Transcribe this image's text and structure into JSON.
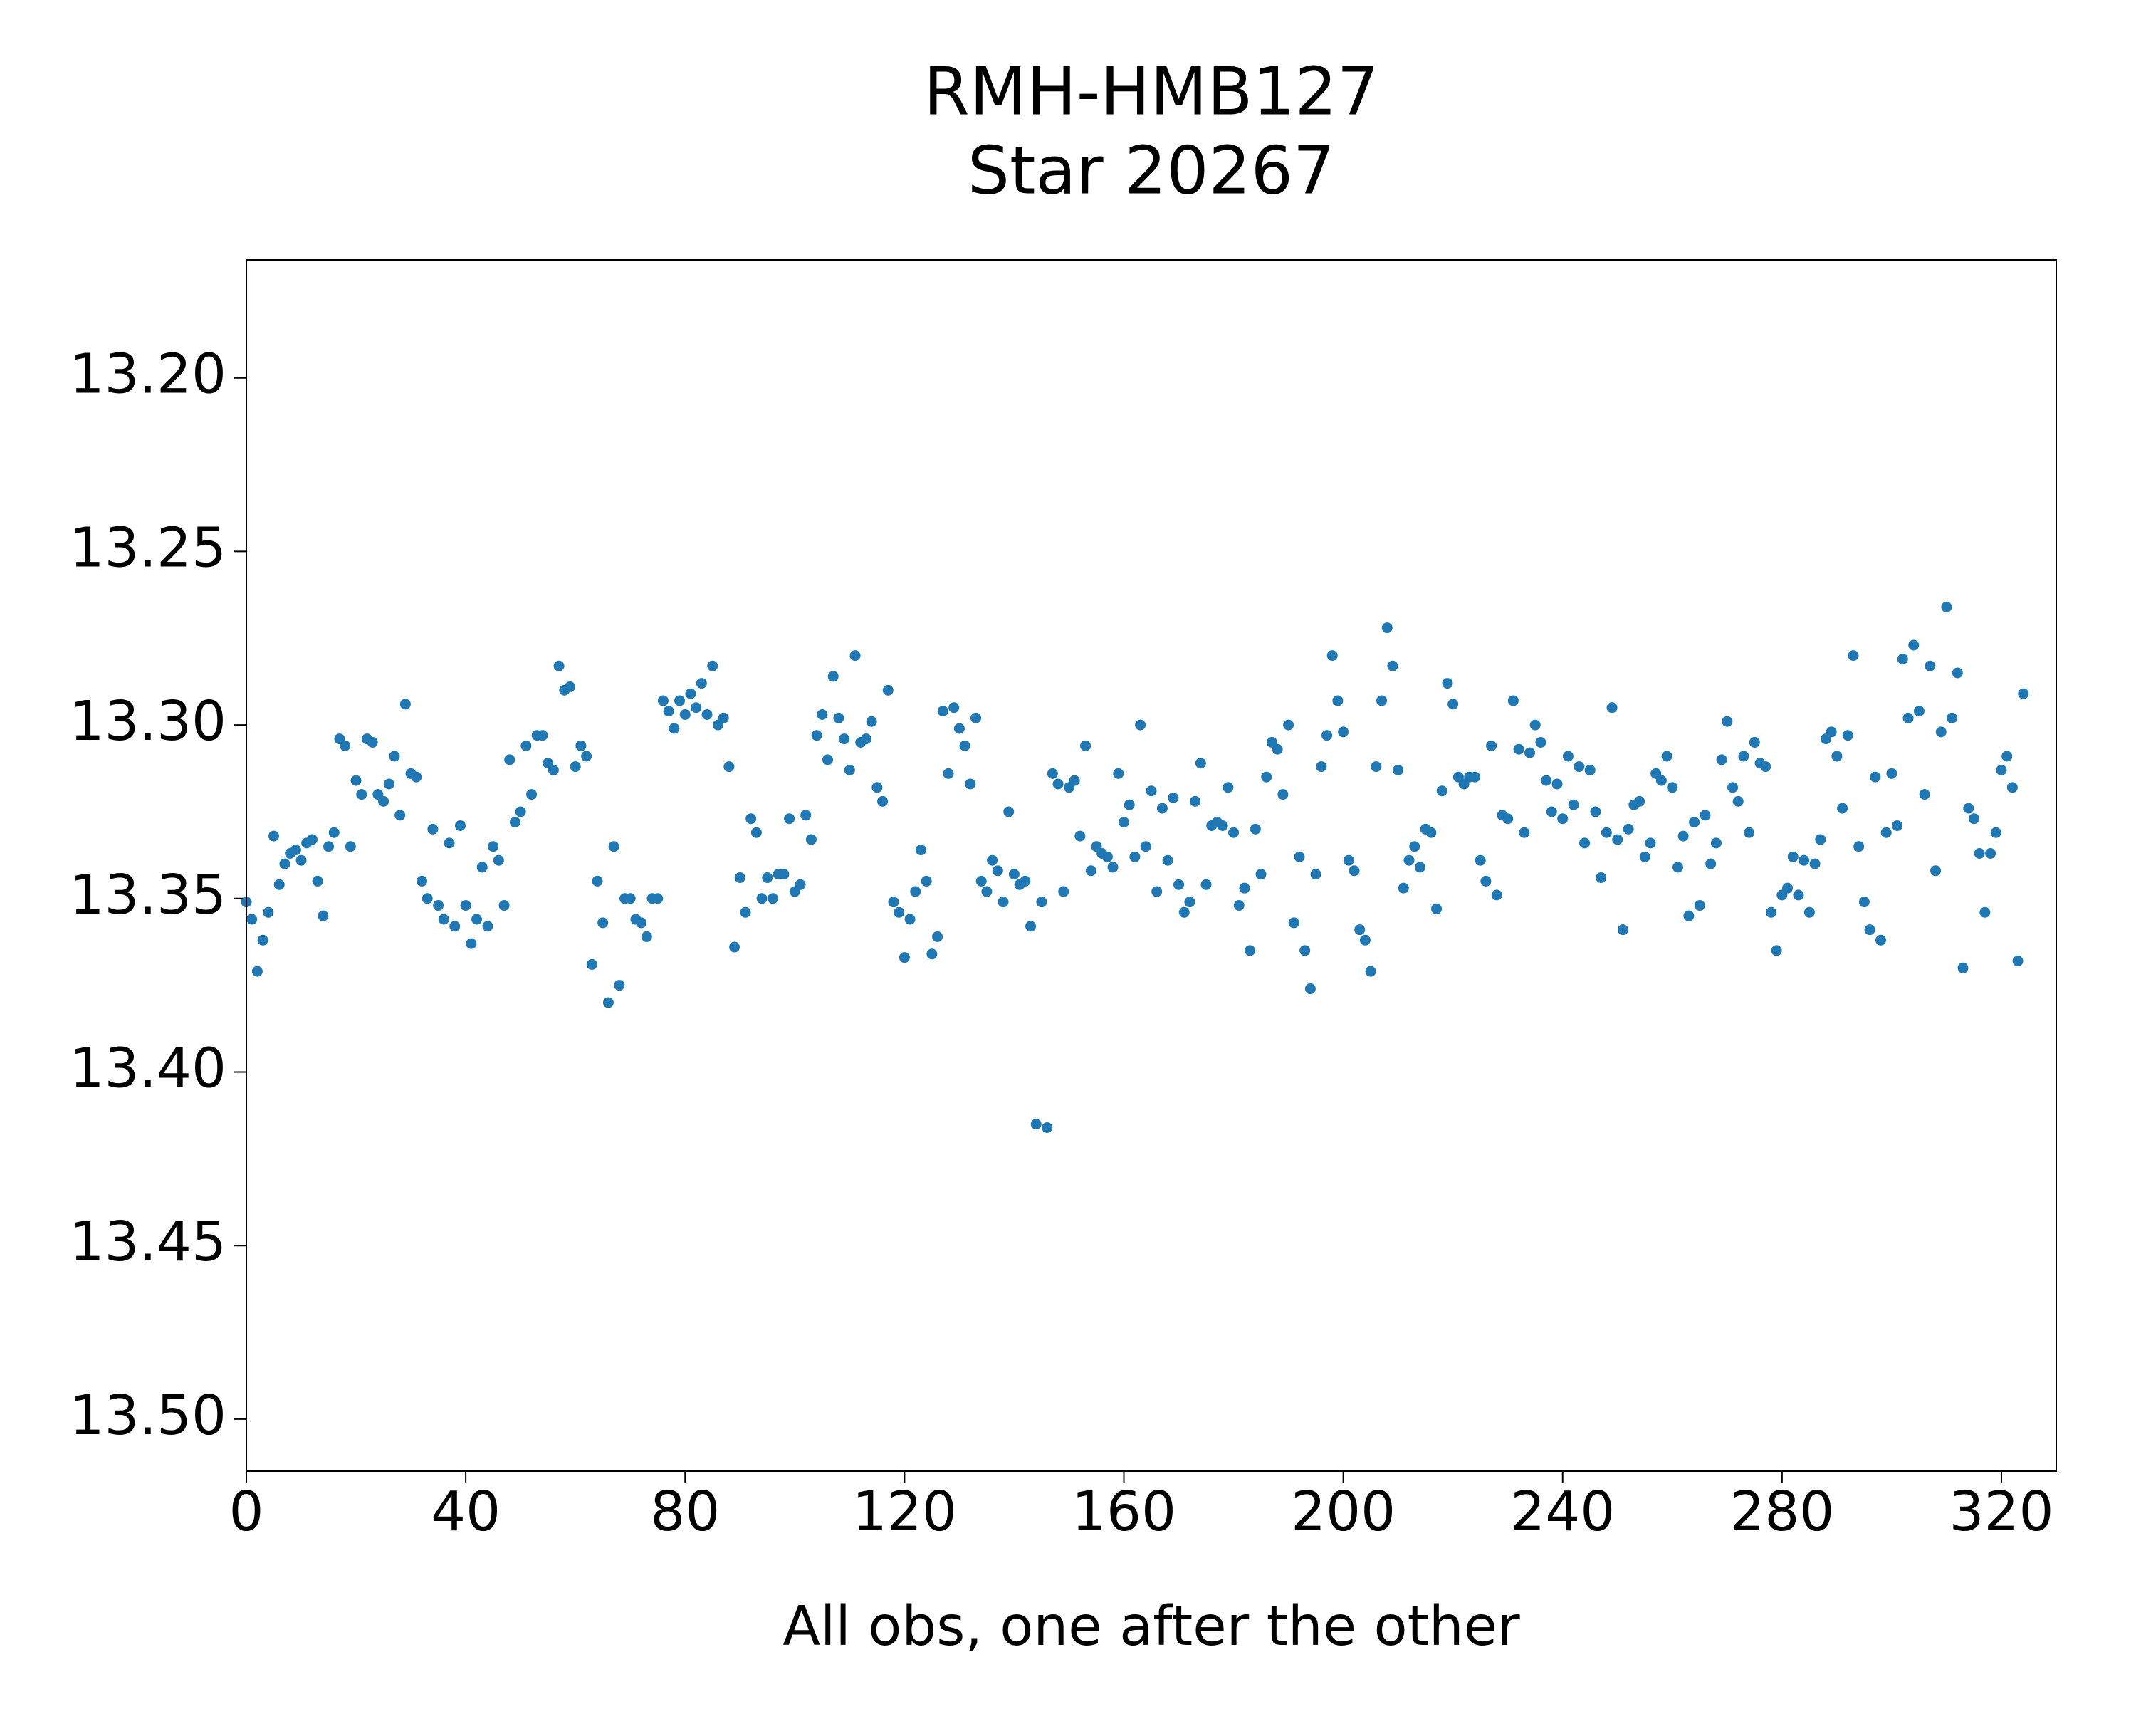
{
  "chart_data": {
    "type": "scatter",
    "title": [
      "RMH-HMB127",
      "Star 20267"
    ],
    "xlabel": "All obs, one after the other",
    "color": "#1f77b4",
    "grid": false,
    "y_inverted": true,
    "xlim": [
      0,
      330
    ],
    "ylim": [
      13.166,
      13.515
    ],
    "xticks": [
      0,
      40,
      80,
      120,
      160,
      200,
      240,
      280,
      320
    ],
    "yticks": [
      {
        "value": 13.2,
        "label": "13.20"
      },
      13.25,
      {
        "value": 13.3,
        "label": "13.30"
      },
      13.35,
      {
        "value": 13.4,
        "label": "13.40"
      },
      13.45,
      {
        "value": 13.5,
        "label": "13.50"
      }
    ],
    "x": [
      0,
      1,
      2,
      3,
      4,
      5,
      6,
      7,
      8,
      9,
      10,
      11,
      12,
      13,
      14,
      15,
      16,
      17,
      18,
      19,
      20,
      21,
      22,
      23,
      24,
      25,
      26,
      27,
      28,
      29,
      30,
      31,
      32,
      33,
      34,
      35,
      36,
      37,
      38,
      39,
      40,
      41,
      42,
      43,
      44,
      45,
      46,
      47,
      48,
      49,
      50,
      51,
      52,
      53,
      54,
      55,
      56,
      57,
      58,
      59,
      60,
      61,
      62,
      63,
      64,
      65,
      66,
      67,
      68,
      69,
      70,
      71,
      72,
      73,
      74,
      75,
      76,
      77,
      78,
      79,
      80,
      81,
      82,
      83,
      84,
      85,
      86,
      87,
      88,
      89,
      90,
      91,
      92,
      93,
      94,
      95,
      96,
      97,
      98,
      99,
      100,
      101,
      102,
      103,
      104,
      105,
      106,
      107,
      108,
      109,
      110,
      111,
      112,
      113,
      114,
      115,
      116,
      117,
      118,
      119,
      120,
      121,
      122,
      123,
      124,
      125,
      126,
      127,
      128,
      129,
      130,
      131,
      132,
      133,
      134,
      135,
      136,
      137,
      138,
      139,
      140,
      141,
      142,
      143,
      144,
      145,
      146,
      147,
      148,
      149,
      150,
      151,
      152,
      153,
      154,
      155,
      156,
      157,
      158,
      159,
      160,
      161,
      162,
      163,
      164,
      165,
      166,
      167,
      168,
      169,
      170,
      171,
      172,
      173,
      174,
      175,
      176,
      177,
      178,
      179,
      180,
      181,
      182,
      183,
      184,
      185,
      186,
      187,
      188,
      189,
      190,
      191,
      192,
      193,
      194,
      195,
      196,
      197,
      198,
      199,
      200,
      201,
      202,
      203,
      204,
      205,
      206,
      207,
      208,
      209,
      210,
      211,
      212,
      213,
      214,
      215,
      216,
      217,
      218,
      219,
      220,
      221,
      222,
      223,
      224,
      225,
      226,
      227,
      228,
      229,
      230,
      231,
      232,
      233,
      234,
      235,
      236,
      237,
      238,
      239,
      240,
      241,
      242,
      243,
      244,
      245,
      246,
      247,
      248,
      249,
      250,
      251,
      252,
      253,
      254,
      255,
      256,
      257,
      258,
      259,
      260,
      261,
      262,
      263,
      264,
      265,
      266,
      267,
      268,
      269,
      270,
      271,
      272,
      273,
      274,
      275,
      276,
      277,
      278,
      279,
      280,
      281,
      282,
      283,
      284,
      285,
      286,
      287,
      288,
      289,
      290,
      291,
      292,
      293,
      294,
      295,
      296,
      297,
      298,
      299,
      300,
      301,
      302,
      303,
      304,
      305,
      306,
      307,
      308,
      309,
      310,
      311,
      312,
      313,
      314,
      315,
      316,
      317,
      318,
      319,
      320,
      321,
      322,
      323,
      324
    ],
    "values": [
      13.351,
      13.356,
      13.371,
      13.362,
      13.354,
      13.332,
      13.346,
      13.34,
      13.337,
      13.336,
      13.339,
      13.334,
      13.333,
      13.345,
      13.355,
      13.335,
      13.331,
      13.304,
      13.306,
      13.335,
      13.316,
      13.32,
      13.304,
      13.305,
      13.32,
      13.322,
      13.317,
      13.309,
      13.326,
      13.294,
      13.314,
      13.315,
      13.345,
      13.35,
      13.33,
      13.352,
      13.356,
      13.334,
      13.358,
      13.329,
      13.352,
      13.363,
      13.356,
      13.341,
      13.358,
      13.335,
      13.339,
      13.352,
      13.31,
      13.328,
      13.325,
      13.306,
      13.32,
      13.303,
      13.303,
      13.311,
      13.313,
      13.283,
      13.29,
      13.289,
      13.312,
      13.306,
      13.309,
      13.369,
      13.345,
      13.357,
      13.38,
      13.335,
      13.375,
      13.35,
      13.35,
      13.356,
      13.357,
      13.361,
      13.35,
      13.35,
      13.293,
      13.296,
      13.301,
      13.293,
      13.297,
      13.291,
      13.295,
      13.288,
      13.297,
      13.283,
      13.3,
      13.298,
      13.312,
      13.364,
      13.344,
      13.354,
      13.327,
      13.331,
      13.35,
      13.344,
      13.35,
      13.343,
      13.343,
      13.327,
      13.348,
      13.346,
      13.326,
      13.333,
      13.303,
      13.297,
      13.31,
      13.286,
      13.298,
      13.304,
      13.313,
      13.28,
      13.305,
      13.304,
      13.299,
      13.318,
      13.322,
      13.29,
      13.351,
      13.354,
      13.367,
      13.356,
      13.348,
      13.336,
      13.345,
      13.366,
      13.361,
      13.296,
      13.314,
      13.295,
      13.301,
      13.306,
      13.317,
      13.298,
      13.345,
      13.348,
      13.339,
      13.342,
      13.351,
      13.325,
      13.343,
      13.346,
      13.345,
      13.358,
      13.415,
      13.351,
      13.416,
      13.314,
      13.317,
      13.348,
      13.318,
      13.316,
      13.332,
      13.306,
      13.342,
      13.335,
      13.337,
      13.338,
      13.341,
      13.314,
      13.328,
      13.323,
      13.338,
      13.3,
      13.335,
      13.319,
      13.348,
      13.324,
      13.339,
      13.321,
      13.346,
      13.354,
      13.351,
      13.322,
      13.311,
      13.346,
      13.329,
      13.328,
      13.329,
      13.318,
      13.331,
      13.352,
      13.347,
      13.365,
      13.33,
      13.343,
      13.315,
      13.305,
      13.307,
      13.32,
      13.3,
      13.357,
      13.338,
      13.365,
      13.376,
      13.343,
      13.312,
      13.303,
      13.28,
      13.293,
      13.302,
      13.339,
      13.342,
      13.359,
      13.362,
      13.371,
      13.312,
      13.293,
      13.272,
      13.283,
      13.313,
      13.347,
      13.339,
      13.335,
      13.341,
      13.33,
      13.331,
      13.353,
      13.319,
      13.288,
      13.294,
      13.315,
      13.317,
      13.315,
      13.315,
      13.339,
      13.345,
      13.306,
      13.349,
      13.326,
      13.327,
      13.293,
      13.307,
      13.331,
      13.308,
      13.3,
      13.305,
      13.316,
      13.325,
      13.317,
      13.327,
      13.309,
      13.323,
      13.312,
      13.334,
      13.313,
      13.325,
      13.344,
      13.331,
      13.295,
      13.333,
      13.359,
      13.33,
      13.323,
      13.322,
      13.338,
      13.334,
      13.314,
      13.316,
      13.309,
      13.318,
      13.341,
      13.332,
      13.355,
      13.328,
      13.352,
      13.326,
      13.34,
      13.334,
      13.31,
      13.299,
      13.318,
      13.322,
      13.309,
      13.331,
      13.305,
      13.311,
      13.312,
      13.354,
      13.365,
      13.349,
      13.347,
      13.338,
      13.349,
      13.339,
      13.354,
      13.34,
      13.333,
      13.304,
      13.302,
      13.309,
      13.324,
      13.303,
      13.28,
      13.335,
      13.351,
      13.359,
      13.315,
      13.362,
      13.331,
      13.314,
      13.329,
      13.281,
      13.298,
      13.277,
      13.296,
      13.32,
      13.283,
      13.342,
      13.302,
      13.266,
      13.298,
      13.285,
      13.37,
      13.324,
      13.327,
      13.337,
      13.354,
      13.337,
      13.331,
      13.313,
      13.309,
      13.318,
      13.368,
      13.291
    ]
  }
}
